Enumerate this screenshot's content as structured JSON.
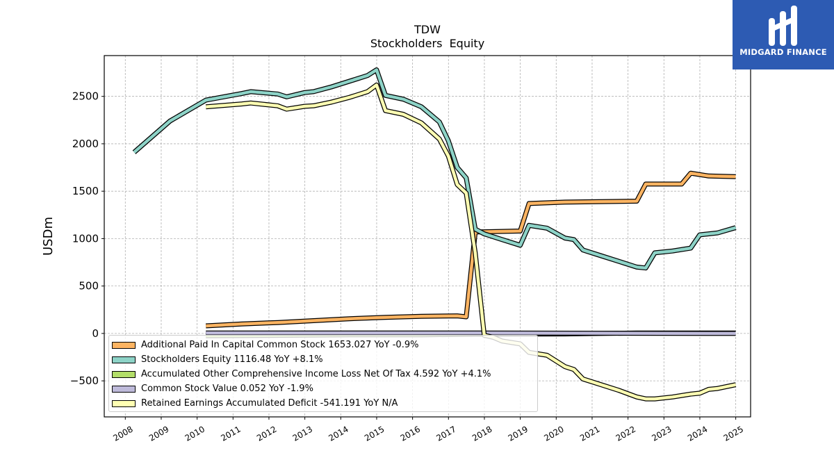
{
  "chart_data": {
    "type": "line",
    "title": "TDW",
    "subtitle": "Stockholders  Equity",
    "ylabel": "USDm",
    "xlim": [
      "2007-06-01",
      "2025-06-01"
    ],
    "ylim": [
      -880,
      2930
    ],
    "x_ticks": [
      "2008",
      "2009",
      "2010",
      "2011",
      "2012",
      "2013",
      "2014",
      "2015",
      "2016",
      "2017",
      "2018",
      "2019",
      "2020",
      "2021",
      "2022",
      "2023",
      "2024",
      "2025"
    ],
    "y_ticks": [
      -500,
      0,
      500,
      1000,
      1500,
      2000,
      2500
    ],
    "grid": true,
    "legend_position": "lower-left",
    "series": [
      {
        "name": "Additional Paid In Capital Common Stock",
        "legend": "Additional Paid In Capital Common Stock  1653.027 YoY -0.9%",
        "color": "#fdb462",
        "points": [
          [
            "2010-03-31",
            80
          ],
          [
            "2011-03-31",
            100
          ],
          [
            "2012-03-31",
            115
          ],
          [
            "2013-03-31",
            135
          ],
          [
            "2014-03-31",
            155
          ],
          [
            "2015-03-31",
            170
          ],
          [
            "2016-03-31",
            180
          ],
          [
            "2017-03-31",
            185
          ],
          [
            "2017-06-30",
            175
          ],
          [
            "2017-09-30",
            1070
          ],
          [
            "2018-12-31",
            1080
          ],
          [
            "2019-03-31",
            1370
          ],
          [
            "2020-03-31",
            1385
          ],
          [
            "2022-03-31",
            1395
          ],
          [
            "2022-06-30",
            1575
          ],
          [
            "2023-06-30",
            1575
          ],
          [
            "2023-09-30",
            1690
          ],
          [
            "2024-03-31",
            1660
          ],
          [
            "2024-12-31",
            1653
          ]
        ]
      },
      {
        "name": "Stockholders Equity",
        "legend": "Stockholders Equity  1116.48 YoY +8.1%",
        "color": "#8dd3c7",
        "points": [
          [
            "2008-03-31",
            1910
          ],
          [
            "2009-03-31",
            2240
          ],
          [
            "2010-03-31",
            2460
          ],
          [
            "2011-03-31",
            2530
          ],
          [
            "2011-06-30",
            2550
          ],
          [
            "2012-03-31",
            2525
          ],
          [
            "2012-06-30",
            2495
          ],
          [
            "2012-12-31",
            2540
          ],
          [
            "2013-03-31",
            2550
          ],
          [
            "2013-09-30",
            2600
          ],
          [
            "2014-03-31",
            2660
          ],
          [
            "2014-09-30",
            2720
          ],
          [
            "2014-12-31",
            2780
          ],
          [
            "2015-03-31",
            2510
          ],
          [
            "2015-09-30",
            2470
          ],
          [
            "2016-03-31",
            2390
          ],
          [
            "2016-09-30",
            2230
          ],
          [
            "2016-12-31",
            2030
          ],
          [
            "2017-03-31",
            1750
          ],
          [
            "2017-06-30",
            1640
          ],
          [
            "2017-09-30",
            1100
          ],
          [
            "2017-12-31",
            1050
          ],
          [
            "2018-06-30",
            990
          ],
          [
            "2018-12-31",
            930
          ],
          [
            "2019-03-31",
            1140
          ],
          [
            "2019-09-30",
            1110
          ],
          [
            "2020-03-31",
            1005
          ],
          [
            "2020-06-30",
            990
          ],
          [
            "2020-09-30",
            880
          ],
          [
            "2021-03-31",
            820
          ],
          [
            "2021-09-30",
            760
          ],
          [
            "2022-03-31",
            700
          ],
          [
            "2022-06-30",
            690
          ],
          [
            "2022-09-30",
            850
          ],
          [
            "2023-03-31",
            870
          ],
          [
            "2023-09-30",
            900
          ],
          [
            "2023-12-31",
            1040
          ],
          [
            "2024-06-30",
            1060
          ],
          [
            "2024-12-31",
            1116
          ]
        ]
      },
      {
        "name": "Accumulated Other Comprehensive Income Loss Net Of Tax",
        "legend": "Accumulated Other Comprehensive Income Loss Net Of Tax  4.592 YoY +4.1%",
        "color": "#b3de69",
        "points": [
          [
            "2010-03-31",
            -25
          ],
          [
            "2012-03-31",
            -20
          ],
          [
            "2014-03-31",
            -15
          ],
          [
            "2016-03-31",
            -15
          ],
          [
            "2017-09-30",
            -8
          ],
          [
            "2020-03-31",
            -5
          ],
          [
            "2022-03-31",
            5
          ],
          [
            "2024-12-31",
            5
          ]
        ]
      },
      {
        "name": "Common Stock Value",
        "legend": "Common Stock Value  0.052 YoY -1.9%",
        "color": "#bebada",
        "points": [
          [
            "2010-03-31",
            5
          ],
          [
            "2017-09-30",
            5
          ],
          [
            "2024-12-31",
            0
          ]
        ]
      },
      {
        "name": "Retained Earnings Accumulated Deficit",
        "legend": "Retained Earnings Accumulated Deficit  -541.191 YoY N/A",
        "color": "#ffffb3",
        "points": [
          [
            "2010-03-31",
            2390
          ],
          [
            "2011-03-31",
            2420
          ],
          [
            "2011-06-30",
            2430
          ],
          [
            "2012-03-31",
            2400
          ],
          [
            "2012-06-30",
            2365
          ],
          [
            "2012-12-31",
            2395
          ],
          [
            "2013-03-31",
            2400
          ],
          [
            "2013-09-30",
            2440
          ],
          [
            "2014-03-31",
            2490
          ],
          [
            "2014-09-30",
            2550
          ],
          [
            "2014-12-31",
            2620
          ],
          [
            "2015-03-31",
            2350
          ],
          [
            "2015-09-30",
            2310
          ],
          [
            "2016-03-31",
            2220
          ],
          [
            "2016-09-30",
            2050
          ],
          [
            "2016-12-31",
            1870
          ],
          [
            "2017-03-31",
            1570
          ],
          [
            "2017-06-30",
            1480
          ],
          [
            "2017-09-30",
            850
          ],
          [
            "2017-12-31",
            -20
          ],
          [
            "2018-03-31",
            -40
          ],
          [
            "2018-06-30",
            -80
          ],
          [
            "2018-12-31",
            -110
          ],
          [
            "2019-03-31",
            -200
          ],
          [
            "2019-09-30",
            -230
          ],
          [
            "2020-03-31",
            -350
          ],
          [
            "2020-06-30",
            -380
          ],
          [
            "2020-09-30",
            -480
          ],
          [
            "2021-03-31",
            -540
          ],
          [
            "2021-09-30",
            -600
          ],
          [
            "2022-03-31",
            -670
          ],
          [
            "2022-06-30",
            -690
          ],
          [
            "2022-09-30",
            -690
          ],
          [
            "2023-03-31",
            -670
          ],
          [
            "2023-09-30",
            -640
          ],
          [
            "2023-12-31",
            -630
          ],
          [
            "2024-03-31",
            -590
          ],
          [
            "2024-06-30",
            -580
          ],
          [
            "2024-12-31",
            -541
          ]
        ]
      }
    ]
  },
  "logo": {
    "text": "MIDGARD FINANCE"
  }
}
